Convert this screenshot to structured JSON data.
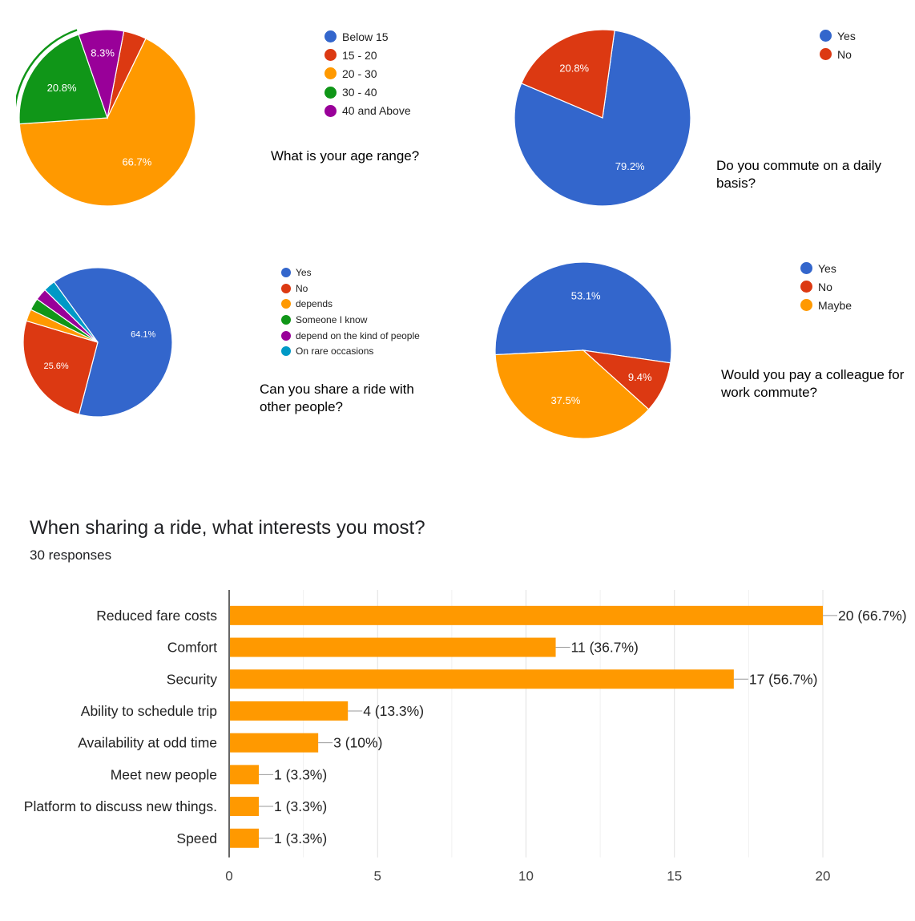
{
  "chart_data": [
    {
      "type": "pie",
      "title": "What is your age range?",
      "categories": [
        "Below 15",
        "15 - 20",
        "20 - 30",
        "30 - 40",
        "40 and Above"
      ],
      "values": [
        0,
        4.2,
        66.7,
        20.8,
        8.3
      ],
      "labels": [
        "",
        "",
        "66.7%",
        "20.8%",
        "8.3%"
      ],
      "colors": [
        "#3366cc",
        "#dc3912",
        "#ff9900",
        "#109618",
        "#990099"
      ],
      "legend_position": "right"
    },
    {
      "type": "pie",
      "title": "Do you commute on a daily basis?",
      "categories": [
        "Yes",
        "No"
      ],
      "values": [
        79.2,
        20.8
      ],
      "labels": [
        "79.2%",
        "20.8%"
      ],
      "colors": [
        "#3366cc",
        "#dc3912"
      ],
      "legend_position": "right"
    },
    {
      "type": "pie",
      "title": "Can you share a ride with other people?",
      "categories": [
        "Yes",
        "No",
        "depends",
        "Someone I know",
        "depend on the kind of people",
        "On rare occasions"
      ],
      "values": [
        64.1,
        25.6,
        2.6,
        2.6,
        2.6,
        2.6
      ],
      "labels": [
        "64.1%",
        "25.6%",
        "",
        "",
        "",
        ""
      ],
      "colors": [
        "#3366cc",
        "#dc3912",
        "#ff9900",
        "#109618",
        "#990099",
        "#0099c6"
      ],
      "legend_position": "right"
    },
    {
      "type": "pie",
      "title": "Would you pay a colleague for work commute?",
      "categories": [
        "Yes",
        "No",
        "Maybe"
      ],
      "values": [
        53.1,
        9.4,
        37.5
      ],
      "labels": [
        "53.1%",
        "9.4%",
        "37.5%"
      ],
      "colors": [
        "#3366cc",
        "#dc3912",
        "#ff9900"
      ],
      "legend_position": "right"
    },
    {
      "type": "bar",
      "orientation": "horizontal",
      "title": "When sharing a ride, what interests you most?",
      "subtitle": "30 responses",
      "categories": [
        "Reduced fare costs",
        "Comfort",
        "Security",
        "Ability to schedule trip",
        "Availability at odd time",
        "Meet new people",
        "Platform to discuss new things.",
        "Speed"
      ],
      "values": [
        20,
        11,
        17,
        4,
        3,
        1,
        1,
        1
      ],
      "value_labels": [
        "20 (66.7%)",
        "11 (36.7%)",
        "17 (56.7%)",
        "4 (13.3%)",
        "3 (10%)",
        "1 (3.3%)",
        "1 (3.3%)",
        "1 (3.3%)"
      ],
      "xlim": [
        0,
        20
      ],
      "xticks": [
        "0",
        "5",
        "10",
        "15",
        "20"
      ],
      "color": "#ff9900",
      "grid": true
    }
  ]
}
